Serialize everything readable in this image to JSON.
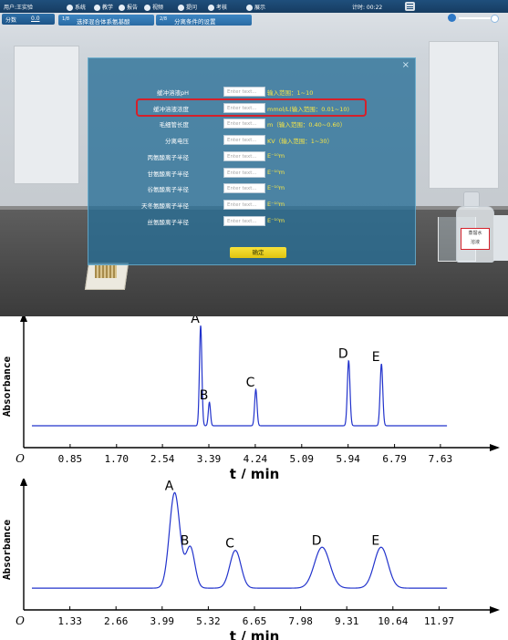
{
  "toolbar": {
    "user": "用户:王实验",
    "items": [
      {
        "label": "系统",
        "icon": "system-icon"
      },
      {
        "label": "教学",
        "icon": "teach-icon"
      },
      {
        "label": "报告",
        "icon": "report-icon"
      },
      {
        "label": "视频",
        "icon": "video-icon"
      },
      {
        "label": "提问",
        "icon": "question-icon"
      },
      {
        "label": "考核",
        "icon": "exam-icon"
      },
      {
        "label": "展示",
        "icon": "display-icon"
      }
    ],
    "timer": "计时: 00:22"
  },
  "score": {
    "label": "分数",
    "value": "0.0"
  },
  "steps": [
    {
      "index": "1/8",
      "label": "选择混合体系氨基酸"
    },
    {
      "index": "2/8",
      "label": "分离条件的设置"
    }
  ],
  "dialog": {
    "rows": [
      {
        "label": "缓冲溶液pH",
        "placeholder": "Enter text...",
        "hint": "输入范围：1~10"
      },
      {
        "label": "缓冲溶液浓度",
        "placeholder": "Enter text...",
        "hint": "mmol/L(输入范围：0.01~10)"
      },
      {
        "label": "毛细管长度",
        "placeholder": "Enter text...",
        "hint": "m（输入范围：0.40~0.60）"
      },
      {
        "label": "分离电压",
        "placeholder": "Enter text...",
        "hint": "KV（输入范围：1~30）"
      },
      {
        "label": "丙氨酸离子半径",
        "placeholder": "Enter text...",
        "hint": "E⁻¹⁰m"
      },
      {
        "label": "甘氨酸离子半径",
        "placeholder": "Enter text...",
        "hint": "E⁻¹⁰m"
      },
      {
        "label": "谷氨酸离子半径",
        "placeholder": "Enter text...",
        "hint": "E⁻¹⁰m"
      },
      {
        "label": "天冬氨酸离子半径",
        "placeholder": "Enter text...",
        "hint": "E⁻¹⁰m"
      },
      {
        "label": "丝氨酸离子半径",
        "placeholder": "Enter text...",
        "hint": "E⁻¹⁰m"
      }
    ],
    "confirm_label": "确定",
    "close_glyph": "×"
  },
  "bottle_label": "蒸馏水\n溶液",
  "colors": {
    "trace": "#2233cc",
    "highlight": "#d5202a",
    "hint": "#f7e646"
  },
  "chart_data": [
    {
      "type": "line",
      "title": "",
      "xlabel": "t / min",
      "ylabel": "Absorbance",
      "origin_label": "O",
      "xticks": [
        "0.85",
        "1.70",
        "2.54",
        "3.39",
        "4.24",
        "5.09",
        "5.94",
        "6.79",
        "7.63"
      ],
      "xtick_values": [
        0.85,
        1.7,
        2.54,
        3.39,
        4.24,
        5.09,
        5.94,
        6.79,
        7.63
      ],
      "xlim": [
        0,
        8.45
      ],
      "ylim": [
        0,
        1
      ],
      "baseline": 0.06,
      "series": [
        {
          "peaks": [
            {
              "label": "A",
              "x": 3.24,
              "height": 1.0,
              "width": 0.022
            },
            {
              "label": "B",
              "x": 3.4,
              "height": 0.28,
              "width": 0.02
            },
            {
              "label": "C",
              "x": 4.25,
              "height": 0.4,
              "width": 0.022
            },
            {
              "label": "D",
              "x": 5.95,
              "height": 0.67,
              "width": 0.024
            },
            {
              "label": "E",
              "x": 6.55,
              "height": 0.64,
              "width": 0.024
            }
          ]
        }
      ],
      "xmax_plot": 7.75
    },
    {
      "type": "line",
      "title": "",
      "xlabel": "t / min",
      "ylabel": "Absorbance",
      "origin_label": "O",
      "xticks": [
        "1.33",
        "2.66",
        "3.99",
        "5.32",
        "6.65",
        "7.98",
        "9.31",
        "10.64",
        "11.97"
      ],
      "xtick_values": [
        1.33,
        2.66,
        3.99,
        5.32,
        6.65,
        7.98,
        9.31,
        10.64,
        11.97
      ],
      "xlim": [
        0,
        13.3
      ],
      "ylim": [
        0,
        1
      ],
      "baseline": 0.06,
      "series": [
        {
          "peaks": [
            {
              "label": "A",
              "x": 4.35,
              "height": 0.97,
              "width": 0.15
            },
            {
              "label": "B",
              "x": 4.8,
              "height": 0.45,
              "width": 0.13
            },
            {
              "label": "C",
              "x": 6.1,
              "height": 0.42,
              "width": 0.16
            },
            {
              "label": "D",
              "x": 8.6,
              "height": 0.45,
              "width": 0.22
            },
            {
              "label": "E",
              "x": 10.3,
              "height": 0.45,
              "width": 0.2
            }
          ]
        }
      ],
      "xmax_plot": 12.2
    }
  ]
}
